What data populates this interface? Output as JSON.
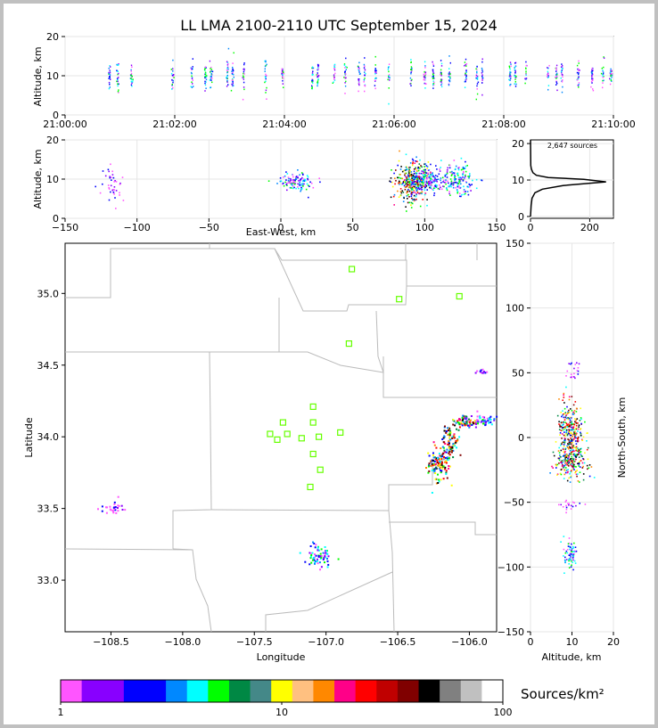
{
  "title": "LL LMA 2100-2110 UTC September 15, 2024",
  "colors": {
    "background": "#ffffff",
    "frame": "#c0c0c0",
    "station": "#66ff00",
    "boundary": "#bbbbbb",
    "axis": "#000000",
    "histogram": "#000000"
  },
  "panels": {
    "time_altitude": {
      "ylabel": "Altitude, km",
      "yticks": [
        "0",
        "10",
        "20"
      ],
      "xticks": [
        "21:00:00",
        "21:02:00",
        "21:04:00",
        "21:06:00",
        "21:08:00",
        "21:10:00"
      ],
      "ylim": [
        0,
        20
      ]
    },
    "ew_altitude": {
      "ylabel": "Altitude, km",
      "xlabel": "East-West, km",
      "yticks": [
        "0",
        "10",
        "20"
      ],
      "xticks": [
        "−150",
        "−100",
        "−50",
        "0",
        "50",
        "100",
        "150"
      ],
      "xlim": [
        -150,
        150
      ],
      "ylim": [
        0,
        20
      ]
    },
    "altitude_histogram": {
      "annotation": "2,647 sources",
      "yticks": [
        "0",
        "10",
        "20"
      ],
      "xticks": [
        "0",
        "200"
      ],
      "xlim": [
        0,
        280
      ],
      "ylim": [
        0,
        21
      ]
    },
    "plan_view": {
      "xlabel": "Longitude",
      "ylabel": "Latitude",
      "xticks": [
        "−108.5",
        "−108.0",
        "−107.5",
        "−107.0",
        "−106.5",
        "−106.0"
      ],
      "yticks": [
        "33.0",
        "33.5",
        "34.0",
        "34.5",
        "35.0"
      ],
      "xlim": [
        -108.82,
        -105.81
      ],
      "ylim": [
        32.64,
        35.35
      ]
    },
    "ns_altitude": {
      "xlabel": "Altitude, km",
      "ylabel": "North-South, km",
      "xticks": [
        "0",
        "10",
        "20"
      ],
      "yticks": [
        "−150",
        "−100",
        "−50",
        "0",
        "50",
        "100",
        "150"
      ],
      "xlim": [
        0,
        20
      ],
      "ylim": [
        -150,
        150
      ]
    }
  },
  "colorbar": {
    "label": "Sources/km²",
    "ticks": [
      "1",
      "10",
      "100"
    ],
    "colors": [
      "#ff55ff",
      "#8800ff",
      "#8800ff",
      "#0000ff",
      "#0000ff",
      "#0088ff",
      "#00ffff",
      "#00ff00",
      "#008844",
      "#448888",
      "#ffff00",
      "#ffc080",
      "#ff8800",
      "#ff0088",
      "#ff0000",
      "#c00000",
      "#800000",
      "#000000",
      "#808080",
      "#c0c0c0",
      "#ffffff"
    ]
  },
  "chart_data": [
    {
      "type": "scatter",
      "name_hint": "time-altitude",
      "xlabel": "",
      "ylabel": "Altitude, km",
      "xlim": [
        "21:00:00",
        "21:10:00"
      ],
      "ylim": [
        0,
        20
      ],
      "time_columns_min": [
        0.8,
        0.95,
        1.2,
        1.95,
        2.3,
        2.55,
        2.65,
        2.95,
        3.05,
        3.25,
        3.65,
        3.95,
        4.5,
        4.6,
        4.9,
        5.1,
        5.35,
        5.45,
        5.65,
        5.9,
        6.3,
        6.55,
        6.7,
        6.85,
        7.0,
        7.3,
        7.5,
        7.6,
        8.1,
        8.2,
        8.4,
        8.8,
        8.95,
        9.05,
        9.35,
        9.6,
        9.8,
        9.95
      ],
      "typical_altitude_km": 10
    },
    {
      "type": "scatter",
      "name_hint": "east-west-altitude",
      "xlabel": "East-West, km",
      "ylabel": "Altitude, km",
      "xlim": [
        -150,
        150
      ],
      "ylim": [
        0,
        20
      ],
      "clusters": [
        {
          "x": -118,
          "y": 9,
          "spread_x": 4,
          "spread_y": 3,
          "n": 40,
          "density": "low"
        },
        {
          "x": 10,
          "y": 9.5,
          "spread_x": 5,
          "spread_y": 1.2,
          "n": 120,
          "density": "medium"
        },
        {
          "x": 90,
          "y": 9.5,
          "spread_x": 6,
          "spread_y": 2.5,
          "n": 320,
          "density": "high"
        },
        {
          "x": 102,
          "y": 10,
          "spread_x": 6,
          "spread_y": 1.5,
          "n": 180,
          "density": "medium"
        },
        {
          "x": 123,
          "y": 10,
          "spread_x": 6,
          "spread_y": 2,
          "n": 160,
          "density": "medium"
        }
      ]
    },
    {
      "type": "line",
      "name_hint": "altitude-histogram",
      "xlim": [
        0,
        280
      ],
      "ylim": [
        0,
        21
      ],
      "x": [
        0,
        2,
        5,
        15,
        40,
        110,
        255,
        180,
        60,
        20,
        8,
        3,
        1,
        0
      ],
      "y": [
        0,
        3,
        5,
        6.5,
        7.5,
        8.5,
        9.5,
        10.2,
        10.7,
        11.3,
        12,
        13,
        14,
        21
      ]
    },
    {
      "type": "scatter",
      "name_hint": "plan-view",
      "xlabel": "Longitude",
      "ylabel": "Latitude",
      "xlim": [
        -108.82,
        -105.81
      ],
      "ylim": [
        32.64,
        35.35
      ],
      "stations": [
        {
          "lon": -106.82,
          "lat": 35.17
        },
        {
          "lon": -106.49,
          "lat": 34.96
        },
        {
          "lon": -106.07,
          "lat": 34.98
        },
        {
          "lon": -106.84,
          "lat": 34.65
        },
        {
          "lon": -107.09,
          "lat": 34.21
        },
        {
          "lon": -107.3,
          "lat": 34.1
        },
        {
          "lon": -107.09,
          "lat": 34.1
        },
        {
          "lon": -107.39,
          "lat": 34.02
        },
        {
          "lon": -107.27,
          "lat": 34.02
        },
        {
          "lon": -106.9,
          "lat": 34.03
        },
        {
          "lon": -107.34,
          "lat": 33.98
        },
        {
          "lon": -107.17,
          "lat": 33.99
        },
        {
          "lon": -107.05,
          "lat": 34.0
        },
        {
          "lon": -107.09,
          "lat": 33.88
        },
        {
          "lon": -107.04,
          "lat": 33.77
        },
        {
          "lon": -107.11,
          "lat": 33.65
        }
      ],
      "clusters": [
        {
          "lon": -108.49,
          "lat": 33.51,
          "spread_lon": 0.04,
          "spread_lat": 0.02,
          "n": 30,
          "density": "low"
        },
        {
          "lon": -107.06,
          "lat": 33.17,
          "spread_lon": 0.05,
          "spread_lat": 0.04,
          "n": 70,
          "density": "medium"
        },
        {
          "lon": -106.22,
          "lat": 33.82,
          "spread_lon": 0.04,
          "spread_lat": 0.06,
          "n": 120,
          "density": "high"
        },
        {
          "lon": -106.14,
          "lat": 33.98,
          "spread_lon": 0.03,
          "spread_lat": 0.06,
          "n": 80,
          "density": "high"
        },
        {
          "lon": -106.03,
          "lat": 34.11,
          "spread_lon": 0.04,
          "spread_lat": 0.02,
          "n": 60,
          "density": "high"
        },
        {
          "lon": -105.9,
          "lat": 34.12,
          "spread_lon": 0.05,
          "spread_lat": 0.02,
          "n": 50,
          "density": "medium"
        },
        {
          "lon": -105.91,
          "lat": 34.46,
          "spread_lon": 0.02,
          "spread_lat": 0.01,
          "n": 12,
          "density": "low"
        }
      ]
    },
    {
      "type": "scatter",
      "name_hint": "north-south-altitude",
      "xlabel": "Altitude, km",
      "ylabel": "North-South, km",
      "xlim": [
        0,
        20
      ],
      "ylim": [
        -150,
        150
      ],
      "clusters": [
        {
          "x": 9.5,
          "y": 5,
          "spread_x": 1.5,
          "spread_y": 12,
          "n": 300,
          "density": "high"
        },
        {
          "x": 9.5,
          "y": -20,
          "spread_x": 1.8,
          "spread_y": 6,
          "n": 180,
          "density": "high"
        },
        {
          "x": 9.5,
          "y": -90,
          "spread_x": 0.8,
          "spread_y": 5,
          "n": 70,
          "density": "medium"
        },
        {
          "x": 9.5,
          "y": -52,
          "spread_x": 1.5,
          "spread_y": 2,
          "n": 20,
          "density": "low"
        },
        {
          "x": 9.8,
          "y": 52,
          "spread_x": 1.2,
          "spread_y": 5,
          "n": 20,
          "density": "low"
        }
      ]
    }
  ]
}
